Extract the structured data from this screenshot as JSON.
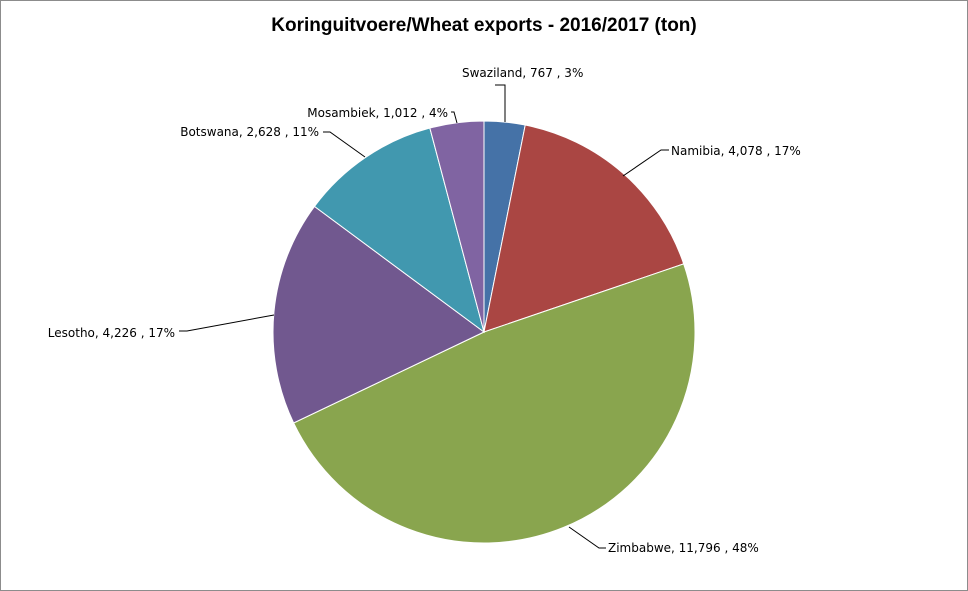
{
  "chart_data": {
    "type": "pie",
    "title": "Koringuitvoere/Wheat exports - 2016/2017 (ton)",
    "slices": [
      {
        "name": "Swaziland",
        "value": 767,
        "value_label": "767",
        "percent_label": "3%",
        "color": "#4572A7",
        "label": "Swaziland,  767 , 3%"
      },
      {
        "name": "Namibia",
        "value": 4078,
        "value_label": "4,078",
        "percent_label": "17%",
        "color": "#AA4643",
        "label": "Namibia,  4,078 , 17%"
      },
      {
        "name": "Zimbabwe",
        "value": 11796,
        "value_label": "11,796",
        "percent_label": "48%",
        "color": "#89A54E",
        "label": "Zimbabwe,  11,796 , 48%"
      },
      {
        "name": "Lesotho",
        "value": 4226,
        "value_label": "4,226",
        "percent_label": "17%",
        "color": "#71588F",
        "label": "Lesotho,  4,226 , 17%"
      },
      {
        "name": "Botswana",
        "value": 2628,
        "value_label": "2,628",
        "percent_label": "11%",
        "color": "#4198AF",
        "label": "Botswana,  2,628 , 11%"
      },
      {
        "name": "Mosambiek",
        "value": 1012,
        "value_label": "1,012",
        "percent_label": "4%",
        "color": "#8064A2",
        "label": "Mosambiek,  1,012 , 4%"
      }
    ],
    "legend": "none",
    "start_angle": "12 o'clock",
    "direction": "clockwise"
  }
}
